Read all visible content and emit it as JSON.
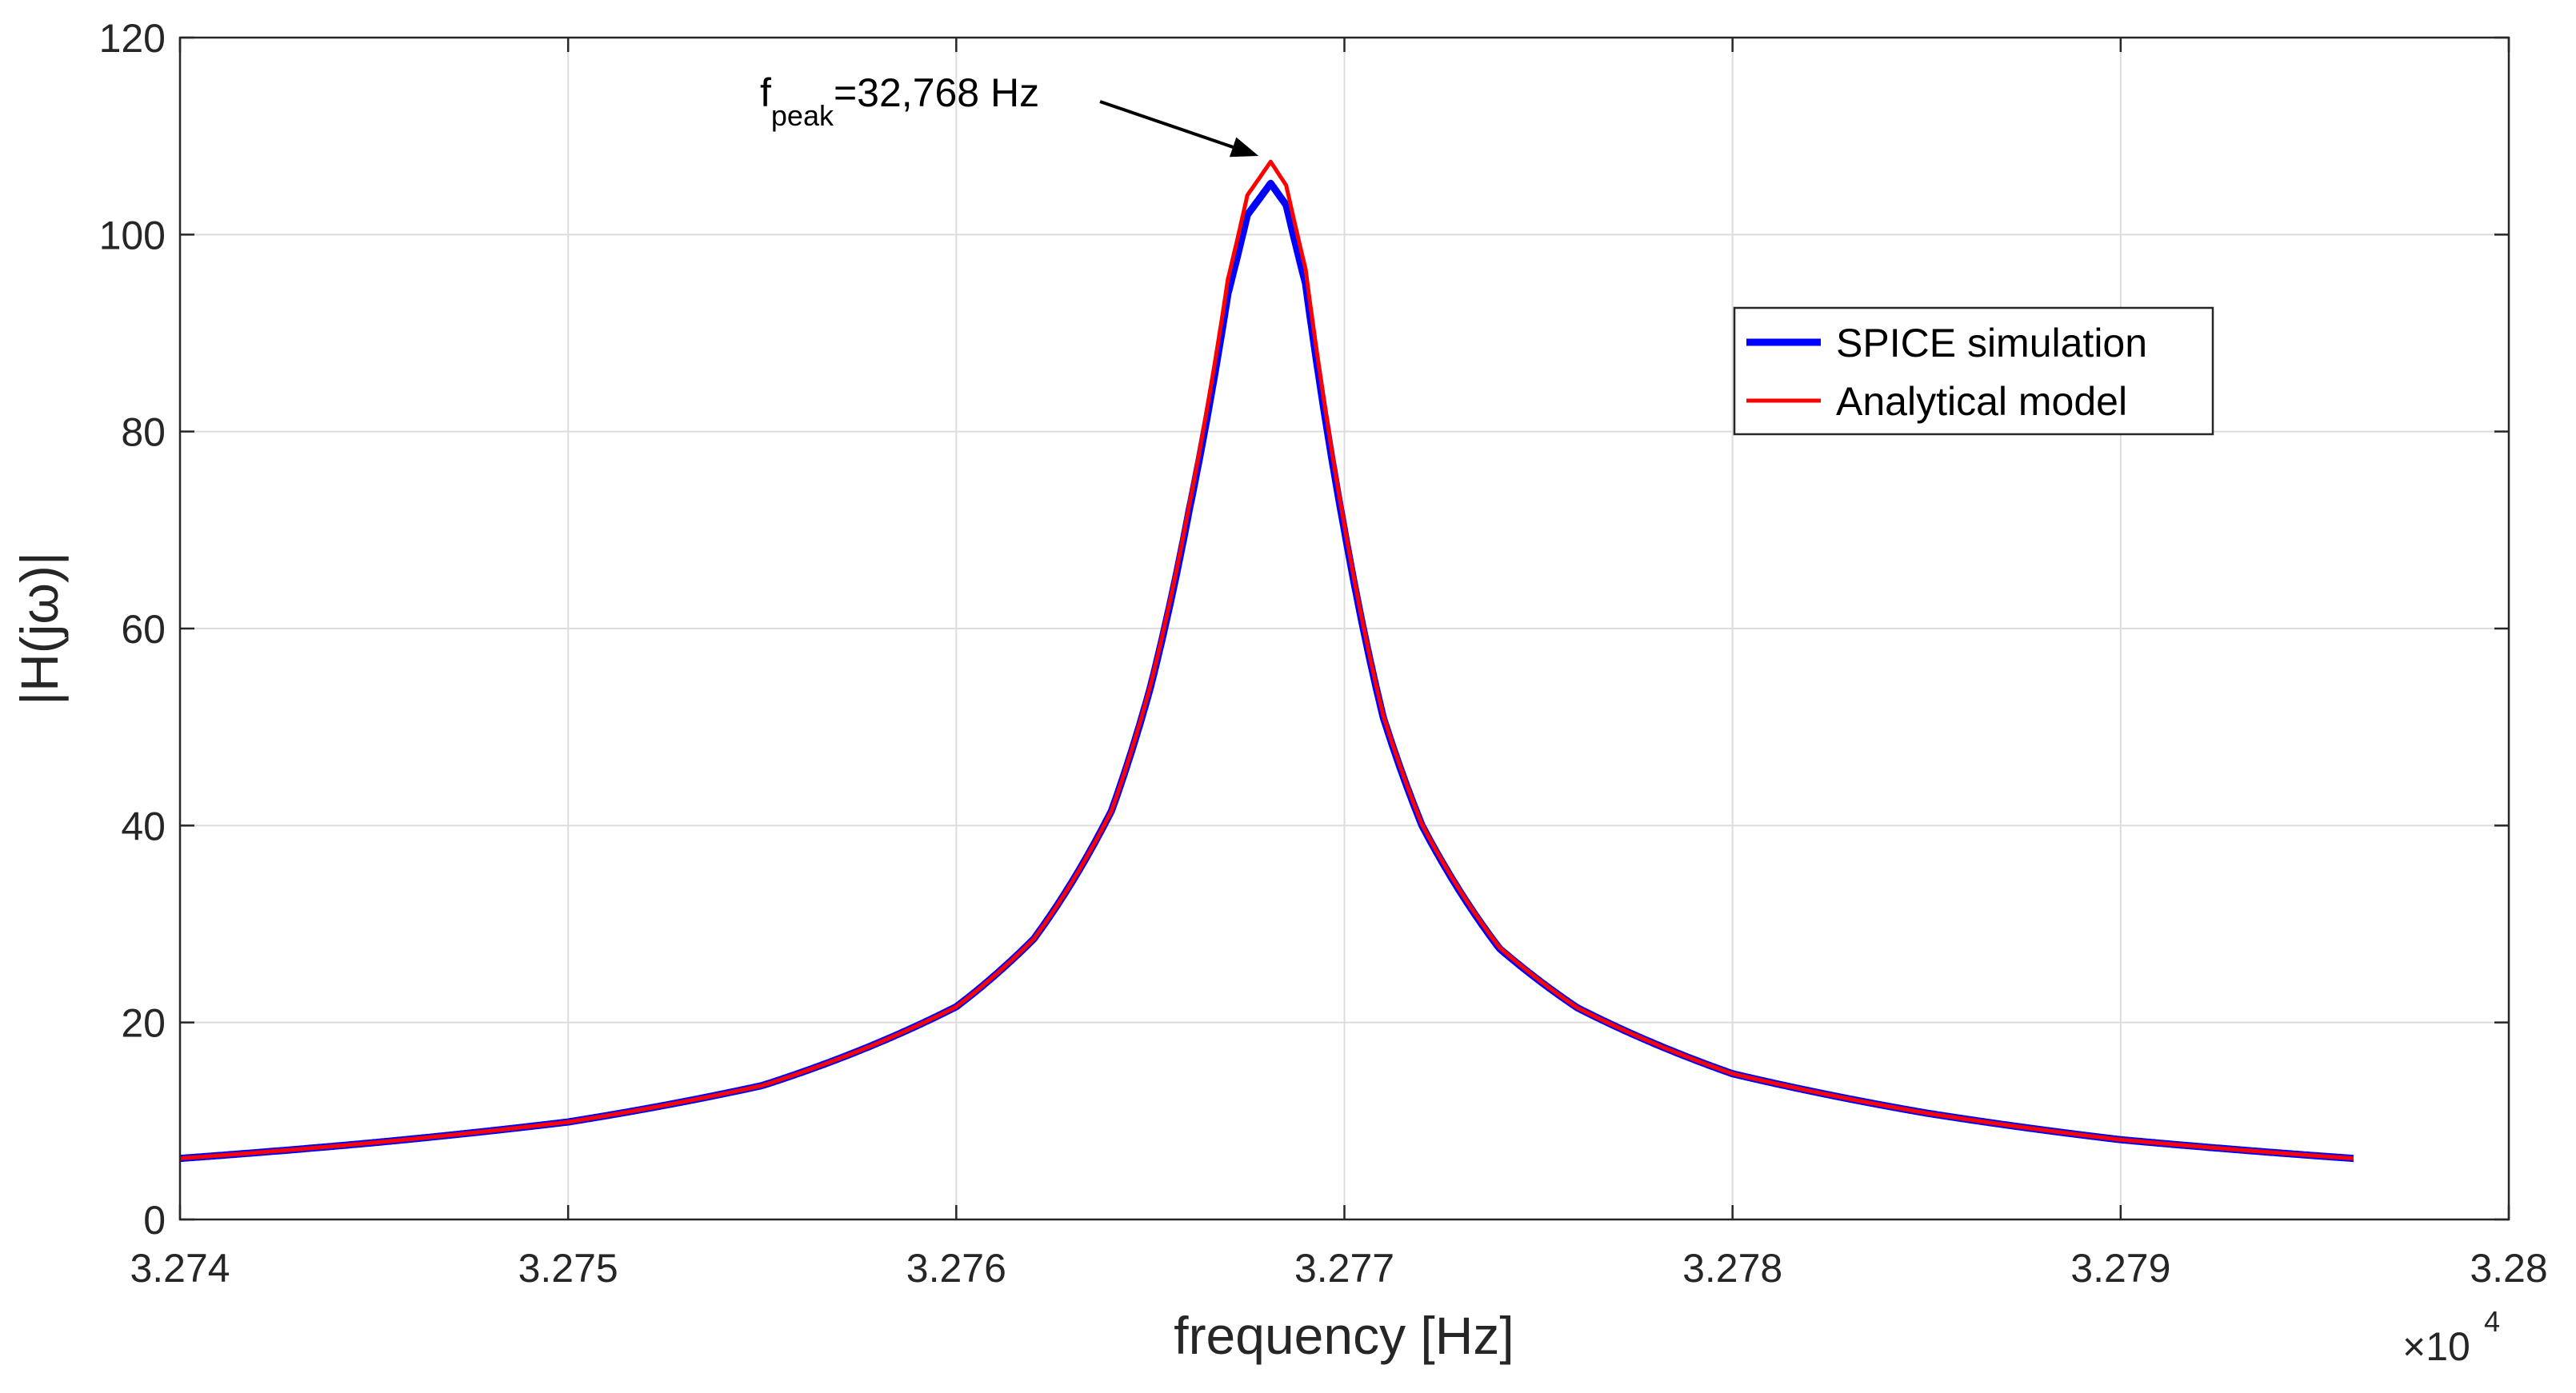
{
  "chart_data": {
    "type": "line",
    "title": "",
    "xlabel": "frequency [Hz]",
    "ylabel": "|H(jω)|",
    "x_exponent": {
      "base": "×10",
      "power": "4"
    },
    "xlim": [
      3.274,
      3.28
    ],
    "ylim": [
      0,
      120
    ],
    "xticks": [
      3.274,
      3.275,
      3.276,
      3.277,
      3.278,
      3.279,
      3.28
    ],
    "xtick_labels": [
      "3.274",
      "3.275",
      "3.276",
      "3.277",
      "3.278",
      "3.279",
      "3.28"
    ],
    "yticks": [
      0,
      20,
      40,
      60,
      80,
      100,
      120
    ],
    "ytick_labels": [
      "0",
      "20",
      "40",
      "60",
      "80",
      "100",
      "120"
    ],
    "grid": true,
    "legend_position": "top-right",
    "annotation": {
      "prefix": "f",
      "subscript": "peak",
      "text": "=32,768 Hz",
      "target": [
        3.27681,
        107.5
      ]
    },
    "series": [
      {
        "name": "SPICE simulation",
        "color": "#0000ff",
        "peak_x": 3.27681,
        "peak_y": 105.2,
        "x_end": 3.2796,
        "x": [
          3.274,
          3.2745,
          3.275,
          3.2755,
          3.276,
          3.2762,
          3.2764,
          3.2765,
          3.2766,
          3.2767,
          3.27675,
          3.27681,
          3.27685,
          3.2769,
          3.277,
          3.2771,
          3.2772,
          3.2774,
          3.2776,
          3.278,
          3.2785,
          3.279,
          3.2796
        ],
        "y": [
          6.2,
          7.8,
          9.9,
          13.6,
          21.6,
          28.5,
          41.5,
          54.0,
          72.0,
          94.0,
          102.0,
          105.2,
          103.0,
          95.0,
          70.0,
          51.0,
          40.0,
          27.5,
          21.5,
          14.8,
          10.8,
          8.1,
          6.2
        ]
      },
      {
        "name": "Analytical model",
        "color": "#ff0000",
        "peak_x": 3.27681,
        "peak_y": 107.4,
        "x_end": 3.2796,
        "x": [
          3.274,
          3.2745,
          3.275,
          3.2755,
          3.276,
          3.2762,
          3.2764,
          3.2765,
          3.2766,
          3.2767,
          3.27675,
          3.27681,
          3.27685,
          3.2769,
          3.277,
          3.2771,
          3.2772,
          3.2774,
          3.2776,
          3.278,
          3.2785,
          3.279,
          3.2796
        ],
        "y": [
          6.2,
          7.8,
          9.9,
          13.6,
          21.6,
          28.5,
          41.5,
          54.2,
          72.5,
          95.5,
          104.0,
          107.4,
          105.0,
          96.5,
          70.5,
          51.2,
          40.1,
          27.6,
          21.5,
          14.8,
          10.8,
          8.1,
          6.2
        ]
      }
    ]
  }
}
